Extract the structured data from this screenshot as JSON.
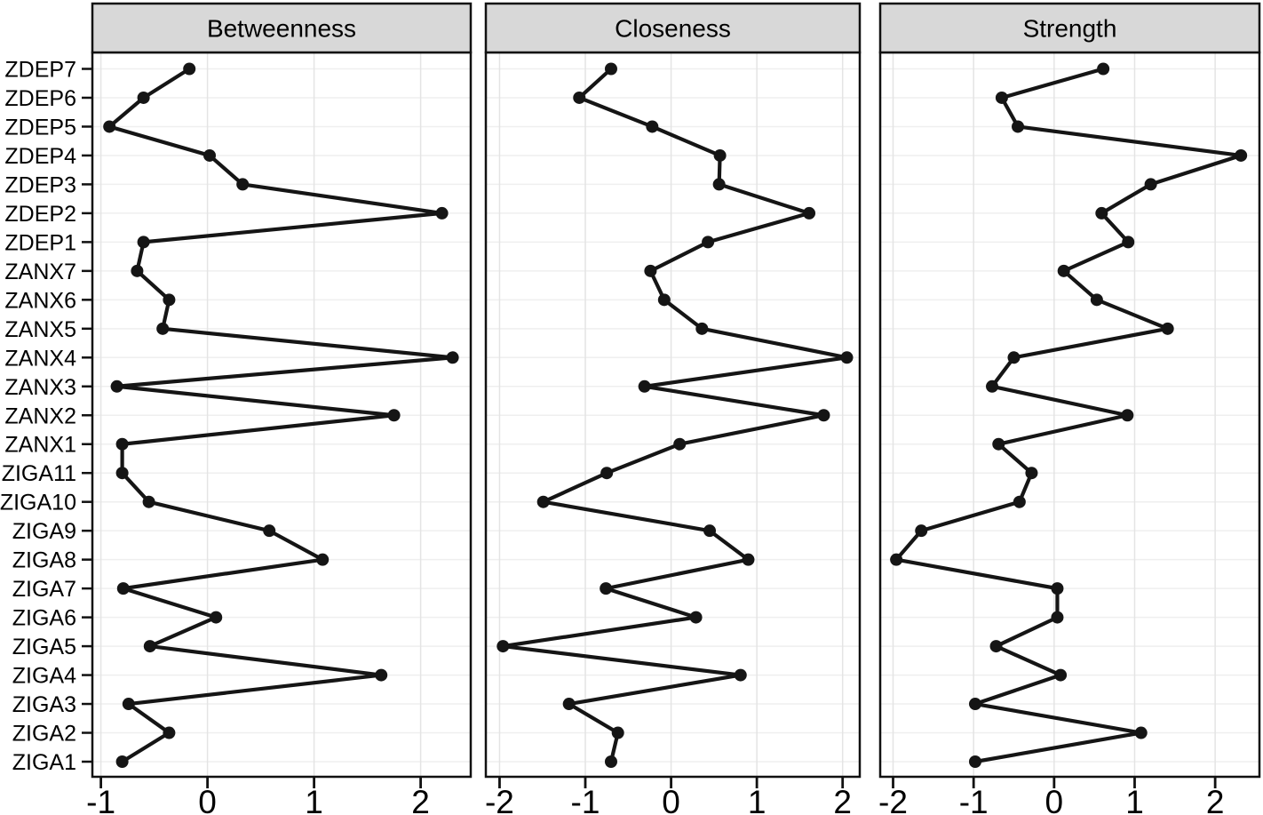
{
  "figure_title": "",
  "colors": {
    "background": "#ffffff",
    "panel_header_fill": "#d8d8d8",
    "panel_border": "#111111",
    "data_line": "#151515",
    "grid_horizontal": "#efefef",
    "grid_vertical": "#e4e4e4",
    "text": "#000000"
  },
  "chart_data": {
    "type": "line",
    "layout": "three-panel horizontal dot-line plot (centrality plot), shared categorical y-axis, points connected row-to-row",
    "legend": "none",
    "grid": true,
    "categories_top_to_bottom": [
      "ZDEP7",
      "ZDEP6",
      "ZDEP5",
      "ZDEP4",
      "ZDEP3",
      "ZDEP2",
      "ZDEP1",
      "ZANX7",
      "ZANX6",
      "ZANX5",
      "ZANX4",
      "ZANX3",
      "ZANX2",
      "ZANX1",
      "ZIGA11",
      "ZIGA10",
      "ZIGA9",
      "ZIGA8",
      "ZIGA7",
      "ZIGA6",
      "ZIGA5",
      "ZIGA4",
      "ZIGA3",
      "ZIGA2",
      "ZIGA1"
    ],
    "panels": [
      {
        "title": "Betweenness",
        "xlim": [
          -1.08,
          2.47
        ],
        "xticks": [
          -1,
          0,
          1,
          2
        ],
        "xtick_labels": [
          "-1",
          "0",
          "1",
          "2"
        ],
        "values": [
          -0.17,
          -0.6,
          -0.92,
          0.02,
          0.33,
          2.2,
          -0.6,
          -0.66,
          -0.36,
          -0.42,
          2.3,
          -0.85,
          1.75,
          -0.8,
          -0.8,
          -0.55,
          0.58,
          1.08,
          -0.79,
          0.08,
          -0.54,
          1.63,
          -0.74,
          -0.36,
          -0.8
        ]
      },
      {
        "title": "Closeness",
        "xlim": [
          -2.16,
          2.2
        ],
        "xticks": [
          -2,
          -1,
          0,
          1,
          2
        ],
        "xtick_labels": [
          "-2",
          "-1",
          "0",
          "1",
          "2"
        ],
        "values": [
          -0.7,
          -1.07,
          -0.22,
          0.57,
          0.56,
          1.61,
          0.43,
          -0.24,
          -0.08,
          0.36,
          2.05,
          -0.31,
          1.78,
          0.1,
          -0.75,
          -1.49,
          0.45,
          0.9,
          -0.76,
          0.29,
          -1.96,
          0.81,
          -1.19,
          -0.62,
          -0.7
        ]
      },
      {
        "title": "Strength",
        "xlim": [
          -2.16,
          2.55
        ],
        "xticks": [
          -2,
          -1,
          0,
          1,
          2
        ],
        "xtick_labels": [
          "-2",
          "-1",
          "0",
          "1",
          "2"
        ],
        "values": [
          0.61,
          -0.65,
          -0.45,
          2.32,
          1.2,
          0.59,
          0.92,
          0.12,
          0.53,
          1.41,
          -0.5,
          -0.77,
          0.91,
          -0.69,
          -0.28,
          -0.43,
          -1.65,
          -1.96,
          0.04,
          0.04,
          -0.72,
          0.08,
          -0.98,
          1.08,
          -0.98
        ]
      }
    ]
  }
}
